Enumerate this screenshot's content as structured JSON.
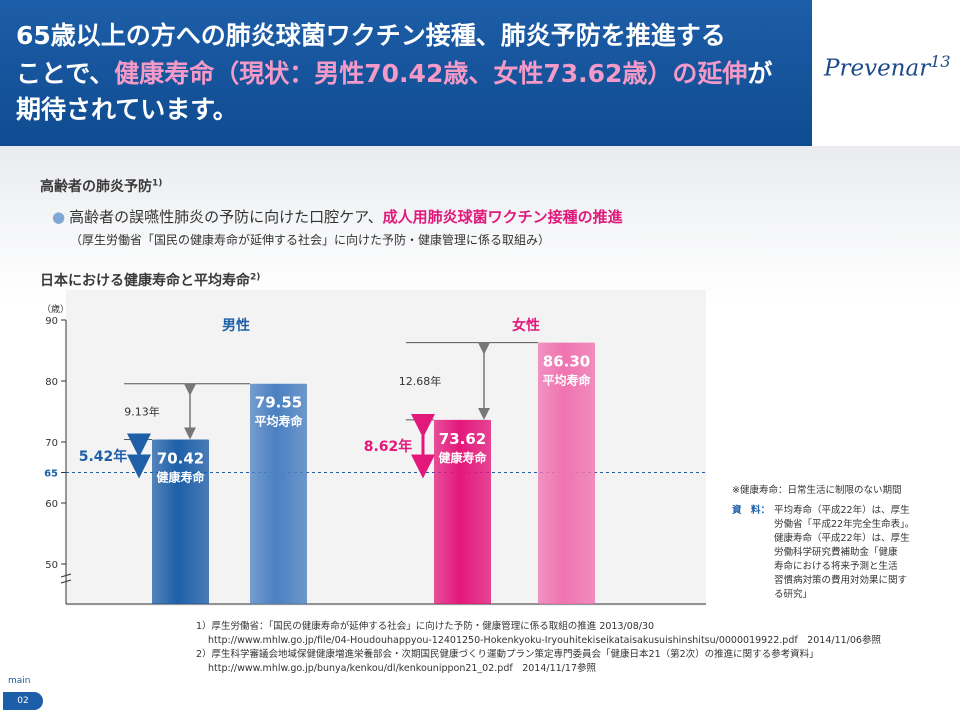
{
  "header": {
    "line1": "65歳以上の方への肺炎球菌ワクチン接種、肺炎予防を推進する",
    "line2_a": "ことで、",
    "line2_b": "健康寿命（現状：男性70.42歳、女性73.62歳）の延伸",
    "line2_c": "が",
    "line3": "期待されています。",
    "logo": "Prevenar",
    "logo_mark": "13"
  },
  "section1": {
    "title": "高齢者の肺炎予防",
    "ref": "1)",
    "bullet_a": "高齢者の誤嚥性肺炎の予防に向けた口腔ケア、",
    "bullet_b": "成人用肺炎球菌ワクチン接種の推進",
    "note": "（厚生労働省「国民の健康寿命が延伸する社会」に向けた予防・健康管理に係る取組み）"
  },
  "section2": {
    "title": "日本における健康寿命と平均寿命",
    "ref": "2)"
  },
  "chart_data": {
    "type": "bar",
    "y_unit": "（歳）",
    "ylim": [
      45,
      90
    ],
    "y_ticks": [
      "90",
      "80",
      "70",
      "65",
      "60",
      "50"
    ],
    "reference_line": {
      "value": 65,
      "label": "65"
    },
    "groups": [
      {
        "name": "男性",
        "bars": [
          {
            "value": 70.42,
            "value_label": "70.42",
            "label": "健康寿命",
            "color": "#1e5fa8"
          },
          {
            "value": 79.55,
            "value_label": "79.55",
            "label": "平均寿命",
            "color": "#4b80c2"
          }
        ],
        "gap_label": "9.13年",
        "diff_label": "5.42年"
      },
      {
        "name": "女性",
        "bars": [
          {
            "value": 73.62,
            "value_label": "73.62",
            "label": "健康寿命",
            "color": "#e3187b"
          },
          {
            "value": 86.3,
            "value_label": "86.30",
            "label": "平均寿命",
            "color": "#ef73b0"
          }
        ],
        "gap_label": "12.68年",
        "diff_label": "8.62年"
      }
    ],
    "colors": {
      "male_diff": "#1e5fa8",
      "female_diff": "#e3187b",
      "gap_arrow": "#777777",
      "ref_line": "#1e5fa8"
    }
  },
  "side_notes": {
    "def": "※健康寿命：日常生活に制限のない期間",
    "src_label": "資　料：",
    "src_lines": [
      "平均寿命（平成22年）は、厚生",
      "労働省「平成22年完全生命表」。",
      "健康寿命（平成22年）は、厚生",
      "労働科学研究費補助金「健康",
      "寿命における将来予測と生活",
      "習慣病対策の費用対効果に関す",
      "る研究」"
    ]
  },
  "footnotes": [
    "1）厚生労働省：「国民の健康寿命が延伸する社会」に向けた予防・健康管理に係る取組の推進 2013/08/30",
    "http://www.mhlw.go.jp/file/04-Houdouhappyou-12401250-Hokenkyoku-Iryouhitekiseikataisakusuishinshitsu/0000019922.pdf　2014/11/06参照",
    "2）厚生科学審議会地域保健健康増進栄養部会・次期国民健康づくり運動プラン策定専門委員会「健康日本21（第2次）の推進に関する参考資料」",
    "http://www.mhlw.go.jp/bunya/kenkou/dl/kenkounippon21_02.pdf　2014/11/17参照"
  ],
  "page": {
    "label": "main",
    "number": "02"
  }
}
